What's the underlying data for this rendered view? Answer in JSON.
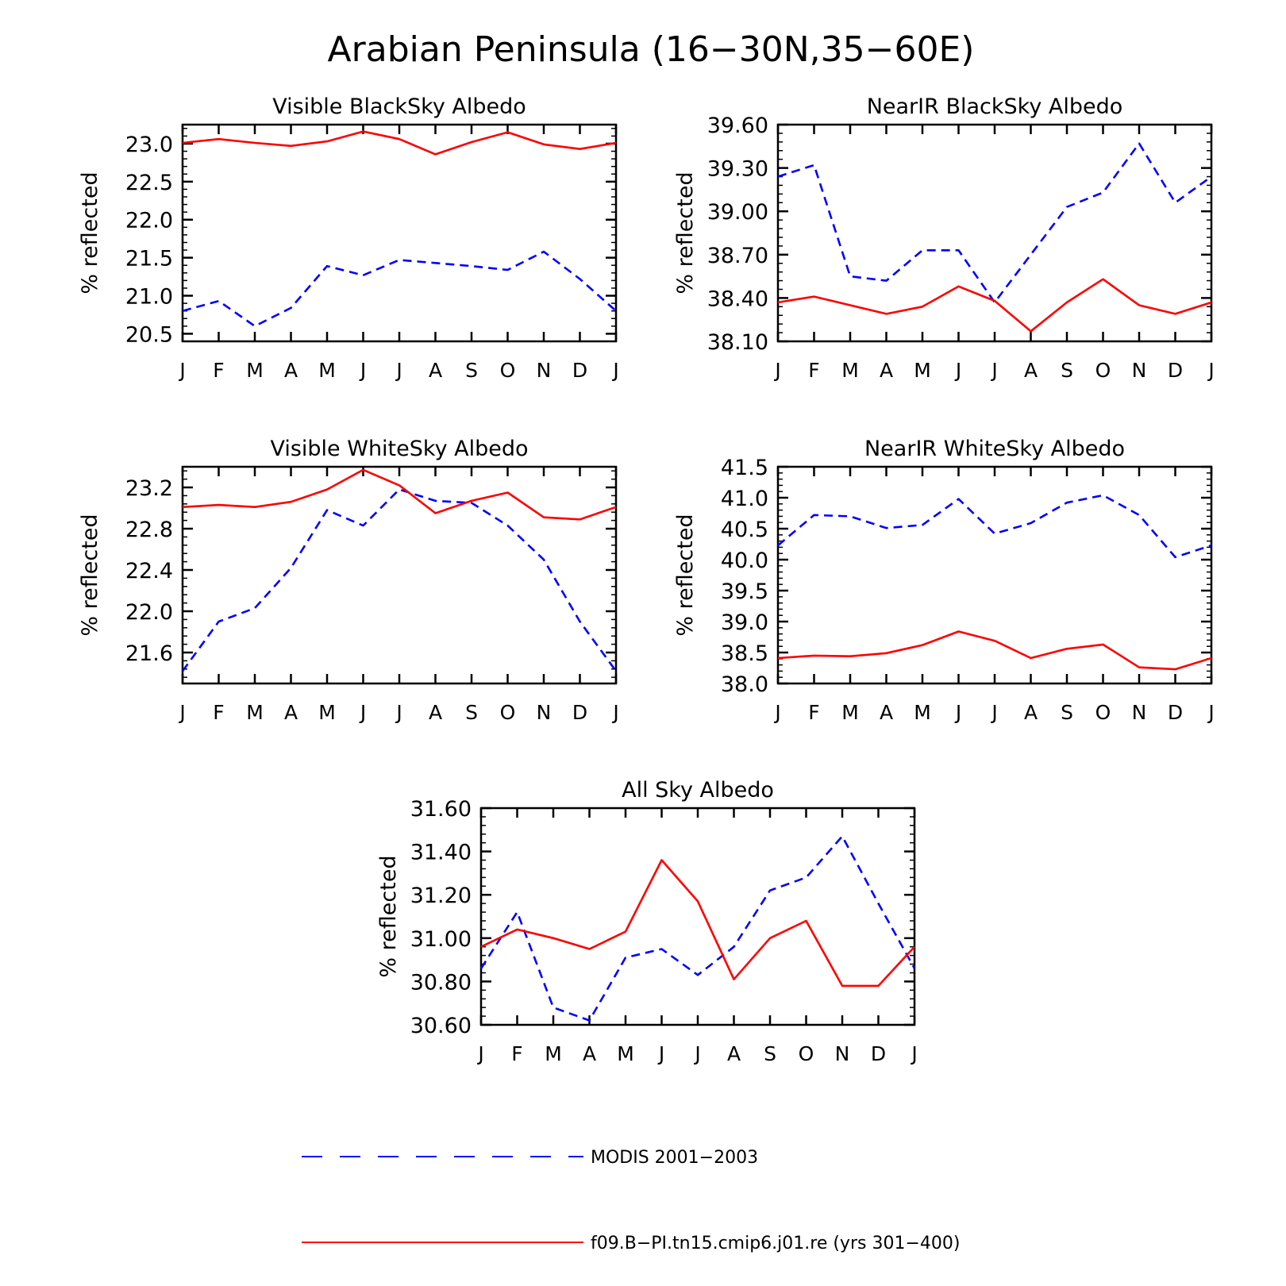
{
  "figure": {
    "title": "Arabian Peninsula (16−30N,35−60E)"
  },
  "legend": {
    "placement": "bottom-center",
    "entries": [
      {
        "label": "MODIS 2001−2003",
        "color": "#0000ff",
        "style": "dashed"
      },
      {
        "label": "f09.B−PI.tn15.cmip6.j01.re (yrs 301−400)",
        "color": "#ff0000",
        "style": "solid"
      }
    ]
  },
  "chart_data": [
    {
      "type": "line",
      "title": "Visible BlackSky Albedo",
      "xlabel": "",
      "ylabel": "% reflected",
      "categories": [
        "J",
        "F",
        "M",
        "A",
        "M",
        "J",
        "J",
        "A",
        "S",
        "O",
        "N",
        "D",
        "J"
      ],
      "ylim": [
        20.4,
        23.25
      ],
      "yticks": [
        "20.5",
        "21.0",
        "21.5",
        "22.0",
        "22.5",
        "23.0"
      ],
      "series": [
        {
          "name": "MODIS 2001−2003",
          "color": "#0000ff",
          "style": "dashed",
          "values": [
            20.8,
            20.93,
            20.6,
            20.84,
            21.39,
            21.27,
            21.47,
            21.43,
            21.39,
            21.34,
            21.58,
            21.22,
            20.8
          ]
        },
        {
          "name": "f09.B−PI.tn15.cmip6.j01.re (yrs 301−400)",
          "color": "#ff0000",
          "style": "solid",
          "values": [
            23.01,
            23.06,
            23.01,
            22.97,
            23.03,
            23.16,
            23.06,
            22.86,
            23.02,
            23.15,
            22.99,
            22.93,
            23.01
          ]
        }
      ]
    },
    {
      "type": "line",
      "title": "NearIR BlackSky Albedo",
      "xlabel": "",
      "ylabel": "% reflected",
      "categories": [
        "J",
        "F",
        "M",
        "A",
        "M",
        "J",
        "J",
        "A",
        "S",
        "O",
        "N",
        "D",
        "J"
      ],
      "ylim": [
        38.1,
        39.6
      ],
      "yticks": [
        "38.10",
        "38.40",
        "38.70",
        "39.00",
        "39.30",
        "39.60"
      ],
      "series": [
        {
          "name": "MODIS 2001−2003",
          "color": "#0000ff",
          "style": "dashed",
          "values": [
            39.24,
            39.32,
            38.55,
            38.52,
            38.73,
            38.73,
            38.37,
            38.7,
            39.03,
            39.13,
            39.47,
            39.06,
            39.24
          ]
        },
        {
          "name": "f09.B−PI.tn15.cmip6.j01.re (yrs 301−400)",
          "color": "#ff0000",
          "style": "solid",
          "values": [
            38.37,
            38.41,
            38.35,
            38.29,
            38.34,
            38.48,
            38.38,
            38.17,
            38.37,
            38.53,
            38.35,
            38.29,
            38.37
          ]
        }
      ]
    },
    {
      "type": "line",
      "title": "Visible WhiteSky Albedo",
      "xlabel": "",
      "ylabel": "% reflected",
      "categories": [
        "J",
        "F",
        "M",
        "A",
        "M",
        "J",
        "J",
        "A",
        "S",
        "O",
        "N",
        "D",
        "J"
      ],
      "ylim": [
        21.3,
        23.4
      ],
      "yticks": [
        "21.6",
        "22.0",
        "22.4",
        "22.8",
        "23.2"
      ],
      "series": [
        {
          "name": "MODIS 2001−2003",
          "color": "#0000ff",
          "style": "dashed",
          "values": [
            21.42,
            21.9,
            22.03,
            22.42,
            22.98,
            22.83,
            23.18,
            23.07,
            23.05,
            22.83,
            22.5,
            21.9,
            21.42
          ]
        },
        {
          "name": "f09.B−PI.tn15.cmip6.j01.re (yrs 301−400)",
          "color": "#ff0000",
          "style": "solid",
          "values": [
            23.01,
            23.03,
            23.01,
            23.06,
            23.18,
            23.37,
            23.22,
            22.95,
            23.07,
            23.15,
            22.91,
            22.89,
            23.01
          ]
        }
      ]
    },
    {
      "type": "line",
      "title": "NearIR WhiteSky Albedo",
      "xlabel": "",
      "ylabel": "% reflected",
      "categories": [
        "J",
        "F",
        "M",
        "A",
        "M",
        "J",
        "J",
        "A",
        "S",
        "O",
        "N",
        "D",
        "J"
      ],
      "ylim": [
        38.0,
        41.5
      ],
      "yticks": [
        "38.0",
        "38.5",
        "39.0",
        "39.5",
        "40.0",
        "40.5",
        "41.0",
        "41.5"
      ],
      "series": [
        {
          "name": "MODIS 2001−2003",
          "color": "#0000ff",
          "style": "dashed",
          "values": [
            40.23,
            40.72,
            40.7,
            40.51,
            40.56,
            40.98,
            40.42,
            40.59,
            40.92,
            41.04,
            40.72,
            40.04,
            40.23
          ]
        },
        {
          "name": "f09.B−PI.tn15.cmip6.j01.re (yrs 301−400)",
          "color": "#ff0000",
          "style": "solid",
          "values": [
            38.41,
            38.45,
            38.44,
            38.49,
            38.62,
            38.84,
            38.69,
            38.41,
            38.56,
            38.63,
            38.26,
            38.23,
            38.41
          ]
        }
      ]
    },
    {
      "type": "line",
      "title": "All Sky Albedo",
      "xlabel": "",
      "ylabel": "% reflected",
      "categories": [
        "J",
        "F",
        "M",
        "A",
        "M",
        "J",
        "J",
        "A",
        "S",
        "O",
        "N",
        "D",
        "J"
      ],
      "ylim": [
        30.6,
        31.6
      ],
      "yticks": [
        "30.60",
        "30.80",
        "31.00",
        "31.20",
        "31.40",
        "31.60"
      ],
      "series": [
        {
          "name": "MODIS 2001−2003",
          "color": "#0000ff",
          "style": "dashed",
          "values": [
            30.86,
            31.12,
            30.68,
            30.62,
            30.91,
            30.95,
            30.83,
            30.96,
            31.22,
            31.28,
            31.47,
            31.16,
            30.86
          ]
        },
        {
          "name": "f09.B−PI.tn15.cmip6.j01.re (yrs 301−400)",
          "color": "#ff0000",
          "style": "solid",
          "values": [
            30.96,
            31.04,
            31.0,
            30.95,
            31.03,
            31.36,
            31.17,
            30.81,
            31.0,
            31.08,
            30.78,
            30.78,
            30.96
          ]
        }
      ]
    }
  ]
}
